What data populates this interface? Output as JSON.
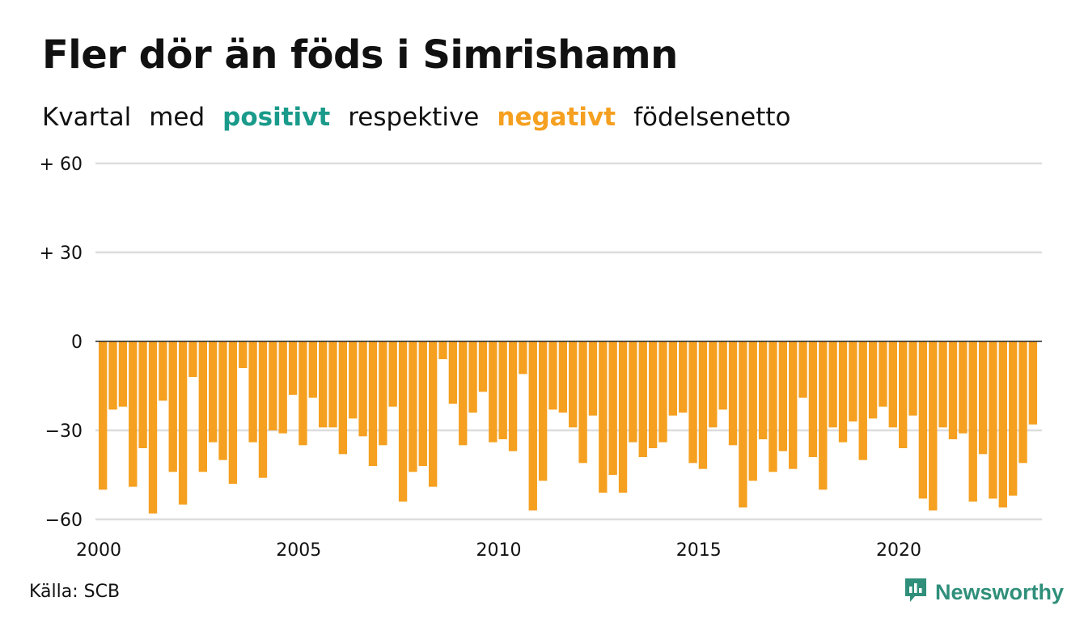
{
  "title": "Fler dör än föds i Simrishamn",
  "subtitle": {
    "part1": "Kvartal",
    "part2": "med",
    "positive": "positivt",
    "part3": "respektive",
    "negative": "negativt",
    "part4": "födelsenetto"
  },
  "source": "Källa: SCB",
  "logo": {
    "text": "Newsworthy",
    "icon": "newsworthy-logo-icon"
  },
  "colors": {
    "positive": "#1a9a8a",
    "negative": "#f5a020",
    "grid": "#dddddd",
    "zero_line": "#222222"
  },
  "chart_data": {
    "type": "bar",
    "title": "Fler dör än föds i Simrishamn",
    "subtitle": "Kvartal med positivt respektive negativt födelsenetto",
    "ylim": [
      -60,
      60
    ],
    "y_ticks": [
      60,
      30,
      0,
      -30,
      -60
    ],
    "y_tick_labels": [
      "+ 60",
      "+ 30",
      "0",
      "−30",
      "−60"
    ],
    "x_ticks": [
      2000,
      2005,
      2010,
      2015,
      2020
    ],
    "x_tick_labels": [
      "2000",
      "2005",
      "2010",
      "2015",
      "2020"
    ],
    "grid": true,
    "x_start": 2000,
    "periods_per_year": 4,
    "values": [
      -50,
      -23,
      -22,
      -49,
      -36,
      -58,
      -20,
      -44,
      -55,
      -12,
      -44,
      -34,
      -40,
      -48,
      -9,
      -34,
      -46,
      -30,
      -31,
      -18,
      -35,
      -19,
      -29,
      -29,
      -38,
      -26,
      -32,
      -42,
      -35,
      -22,
      -54,
      -44,
      -42,
      -49,
      -6,
      -21,
      -35,
      -24,
      -17,
      -34,
      -33,
      -37,
      -11,
      -57,
      -47,
      -23,
      -24,
      -29,
      -41,
      -25,
      -51,
      -45,
      -51,
      -34,
      -39,
      -36,
      -34,
      -25,
      -24,
      -41,
      -43,
      -29,
      -23,
      -35,
      -56,
      -47,
      -33,
      -44,
      -37,
      -43,
      -19,
      -39,
      -50,
      -29,
      -34,
      -27,
      -40,
      -26,
      -22,
      -29,
      -36,
      -25,
      -53,
      -57,
      -29,
      -33,
      -31,
      -54,
      -38,
      -53,
      -56,
      -52,
      -41,
      -28
    ]
  }
}
